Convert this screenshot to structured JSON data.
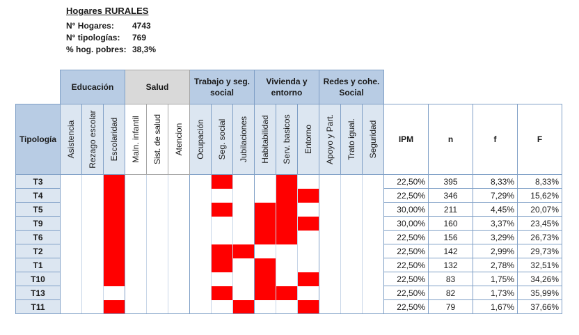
{
  "info": {
    "title": "Hogares RURALES",
    "rows": [
      {
        "label": "N° Hogares:",
        "value": "4743"
      },
      {
        "label": "N° tipologías:",
        "value": "769"
      },
      {
        "label": "% hog. pobres:",
        "value": "38,3%"
      }
    ]
  },
  "groups": [
    {
      "label": "Educación",
      "span": 3
    },
    {
      "label": "Salud",
      "span": 3
    },
    {
      "label": "Trabajo y seg. social",
      "span": 3
    },
    {
      "label": "Vivienda y entorno",
      "span": 3
    },
    {
      "label": "Redes y cohe. Social",
      "span": 3
    }
  ],
  "tipologia_header": "Tipología",
  "dimensions": [
    "Asistencia",
    "Rezago escolar",
    "Escolaridad",
    "Maln. infantil",
    "Sist. de salud",
    "Atencion",
    "Ocupación",
    "Seg. social",
    "Jubilaciones",
    "Habitabilidad",
    "Serv. basicos",
    "Entorno",
    "Apoyo y Part.",
    "Trato igual.",
    "Seguridad"
  ],
  "stat_headers": [
    "IPM",
    "n",
    "f",
    "F"
  ],
  "rows": [
    {
      "tipo": "T3",
      "marks": [
        0,
        0,
        1,
        0,
        0,
        0,
        0,
        1,
        0,
        0,
        1,
        0,
        0,
        0,
        0
      ],
      "ipm": "22,50%",
      "n": "395",
      "f": "8,33%",
      "F": "8,33%"
    },
    {
      "tipo": "T4",
      "marks": [
        0,
        0,
        1,
        0,
        0,
        0,
        0,
        0,
        0,
        0,
        1,
        1,
        0,
        0,
        0
      ],
      "ipm": "22,50%",
      "n": "346",
      "f": "7,29%",
      "F": "15,62%"
    },
    {
      "tipo": "T5",
      "marks": [
        0,
        0,
        1,
        0,
        0,
        0,
        0,
        1,
        0,
        1,
        1,
        0,
        0,
        0,
        0
      ],
      "ipm": "30,00%",
      "n": "211",
      "f": "4,45%",
      "F": "20,07%"
    },
    {
      "tipo": "T9",
      "marks": [
        0,
        0,
        1,
        0,
        0,
        0,
        0,
        0,
        0,
        1,
        1,
        1,
        0,
        0,
        0
      ],
      "ipm": "30,00%",
      "n": "160",
      "f": "3,37%",
      "F": "23,45%"
    },
    {
      "tipo": "T6",
      "marks": [
        0,
        0,
        1,
        0,
        0,
        0,
        0,
        0,
        0,
        1,
        1,
        0,
        0,
        0,
        0
      ],
      "ipm": "22,50%",
      "n": "156",
      "f": "3,29%",
      "F": "26,73%"
    },
    {
      "tipo": "T2",
      "marks": [
        0,
        0,
        1,
        0,
        0,
        0,
        0,
        1,
        1,
        0,
        0,
        0,
        0,
        0,
        0
      ],
      "ipm": "22,50%",
      "n": "142",
      "f": "2,99%",
      "F": "29,73%"
    },
    {
      "tipo": "T1",
      "marks": [
        0,
        0,
        1,
        0,
        0,
        0,
        0,
        1,
        0,
        1,
        0,
        0,
        0,
        0,
        0
      ],
      "ipm": "22,50%",
      "n": "132",
      "f": "2,78%",
      "F": "32,51%"
    },
    {
      "tipo": "T10",
      "marks": [
        0,
        0,
        1,
        0,
        0,
        0,
        0,
        0,
        0,
        1,
        0,
        1,
        0,
        0,
        0
      ],
      "ipm": "22,50%",
      "n": "83",
      "f": "1,75%",
      "F": "34,26%"
    },
    {
      "tipo": "T13",
      "marks": [
        0,
        0,
        0,
        0,
        0,
        0,
        0,
        1,
        0,
        1,
        1,
        0,
        0,
        0,
        0
      ],
      "ipm": "22,50%",
      "n": "82",
      "f": "1,73%",
      "F": "35,99%"
    },
    {
      "tipo": "T11",
      "marks": [
        0,
        0,
        1,
        0,
        0,
        0,
        0,
        0,
        1,
        0,
        0,
        1,
        0,
        0,
        0
      ],
      "ipm": "22,50%",
      "n": "79",
      "f": "1,67%",
      "F": "37,66%"
    }
  ],
  "colors": {
    "mark": "#ff0000",
    "header_blue": "#b8cce4",
    "header_gray": "#d9d9d9"
  }
}
